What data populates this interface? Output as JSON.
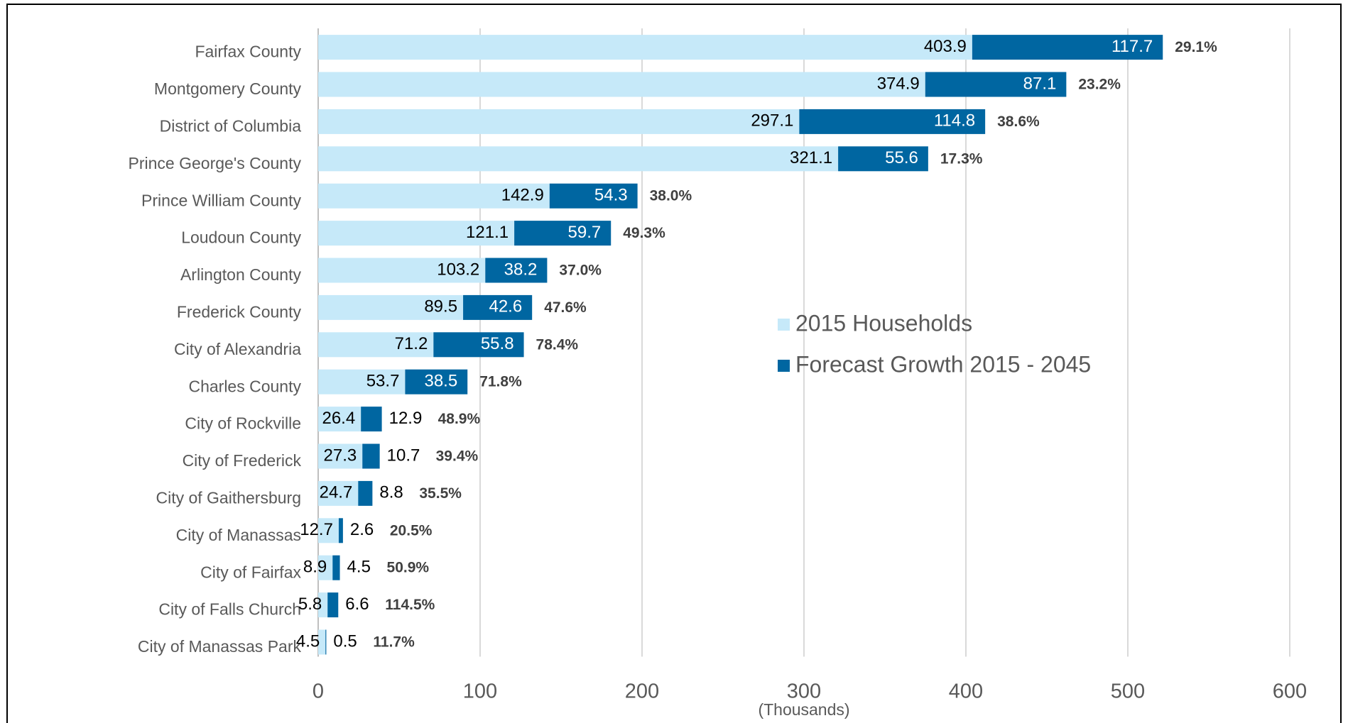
{
  "chart_data": {
    "type": "stacked-barh",
    "categories": [
      "Fairfax County",
      "Montgomery County",
      "District of Columbia",
      "Prince George's County",
      "Prince William County",
      "Loudoun County",
      "Arlington County",
      "Frederick County",
      "City of Alexandria",
      "Charles County",
      "City of Rockville",
      "City of Frederick",
      "City of Gaithersburg",
      "City of Manassas",
      "City of Fairfax",
      "City of Falls Church",
      "City of Manassas Park"
    ],
    "series": [
      {
        "name": "2015 Households",
        "color": "#c6e9f9",
        "values": [
          403.9,
          374.9,
          297.1,
          321.1,
          142.9,
          121.1,
          103.2,
          89.5,
          71.2,
          53.7,
          26.4,
          27.3,
          24.7,
          12.7,
          8.9,
          5.8,
          4.5
        ]
      },
      {
        "name": "Forecast Growth 2015 - 2045",
        "color": "#0066a1",
        "values": [
          117.7,
          87.1,
          114.8,
          55.6,
          54.3,
          59.7,
          38.2,
          42.6,
          55.8,
          38.5,
          12.9,
          10.7,
          8.8,
          2.6,
          4.5,
          6.6,
          0.5
        ]
      }
    ],
    "growth_labels": [
      "29.1%",
      "23.2%",
      "38.6%",
      "17.3%",
      "38.0%",
      "49.3%",
      "37.0%",
      "47.6%",
      "78.4%",
      "71.8%",
      "48.9%",
      "39.4%",
      "35.5%",
      "20.5%",
      "50.9%",
      "114.5%",
      "11.7%"
    ],
    "xlabel": "(Thousands)",
    "xlim": [
      0,
      600
    ],
    "xticks": [
      0,
      100,
      200,
      300,
      400,
      500,
      600
    ],
    "grid": true,
    "legend": "right"
  }
}
